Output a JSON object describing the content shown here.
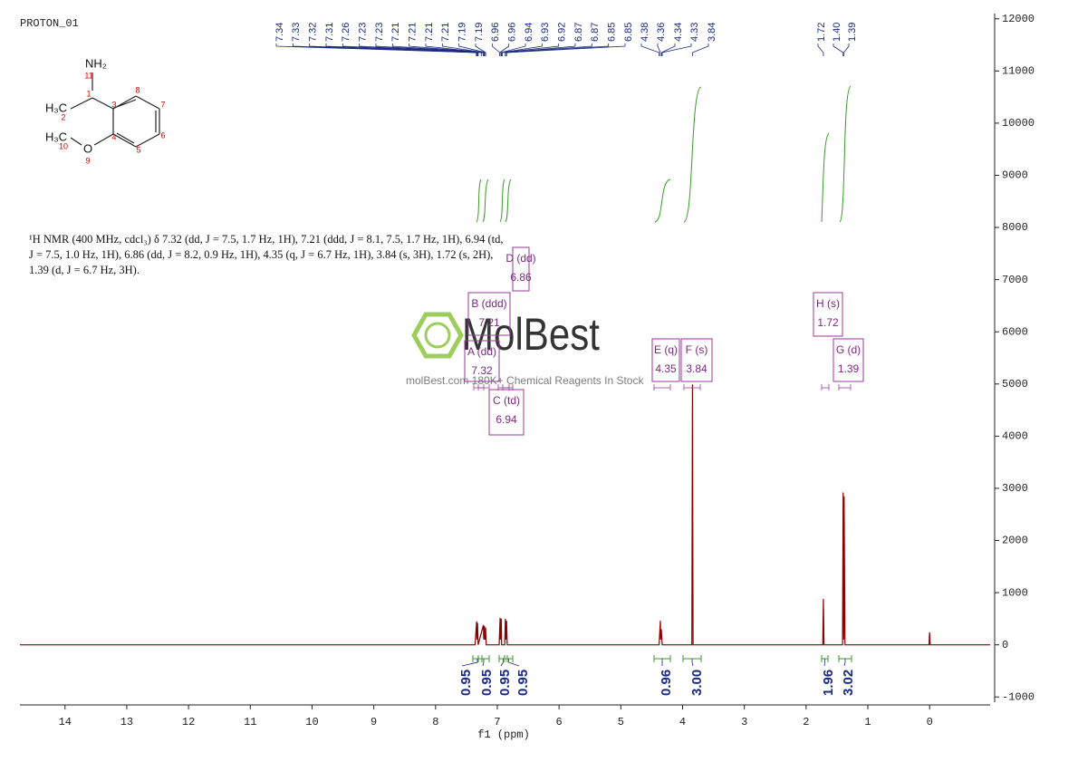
{
  "chart_data": {
    "type": "line",
    "title": "PROTON_01",
    "x_label": "f1 (ppm)",
    "color": "#8b0000",
    "xlim": [
      14.73,
      -0.98
    ],
    "xticks": [
      14,
      13,
      12,
      11,
      10,
      9,
      8,
      7,
      6,
      5,
      4,
      3,
      2,
      1,
      0
    ],
    "ylim": [
      -1100,
      12100
    ],
    "yticks": [
      -1000,
      0,
      1000,
      2000,
      3000,
      4000,
      5000,
      6000,
      7000,
      8000,
      9000,
      10000,
      11000,
      12000
    ],
    "x": [
      14.73,
      7.36,
      7.335,
      7.33,
      7.32,
      7.31,
      7.225,
      7.22,
      7.21,
      7.2,
      7.19,
      7.18,
      6.97,
      6.955,
      6.95,
      6.935,
      6.93,
      6.88,
      6.87,
      6.86,
      6.85,
      6.84,
      4.38,
      4.36,
      4.355,
      4.345,
      4.33,
      3.85,
      3.84,
      3.83,
      1.73,
      1.72,
      1.71,
      1.41,
      1.4,
      1.39,
      1.385,
      1.37,
      0.01,
      0,
      -0.01,
      -0.98
    ],
    "values": [
      0,
      0,
      450,
      100,
      420,
      0,
      380,
      100,
      360,
      100,
      330,
      0,
      0,
      520,
      100,
      500,
      0,
      0,
      500,
      100,
      460,
      0,
      0,
      460,
      100,
      300,
      0,
      0,
      4990,
      0,
      0,
      880,
      0,
      0,
      2920,
      100,
      2850,
      0,
      0,
      240,
      0,
      0
    ],
    "peak_labels": [
      "7.34",
      "7.33",
      "7.32",
      "7.31",
      "7.26",
      "7.23",
      "7.23",
      "7.21",
      "7.21",
      "7.21",
      "7.21",
      "7.19",
      "7.19",
      "6.96",
      "6.96",
      "6.94",
      "6.93",
      "6.92",
      "6.87",
      "6.87",
      "6.85",
      "6.85",
      "4.38",
      "4.36",
      "4.34",
      "4.33",
      "3.84",
      "1.72",
      "1.40",
      "1.39"
    ],
    "multiplets": [
      {
        "label": "A (dd)",
        "shift": "7.32"
      },
      {
        "label": "B (ddd)",
        "shift": "7.21"
      },
      {
        "label": "C (td)",
        "shift": "6.94"
      },
      {
        "label": "D (dd)",
        "shift": "6.86"
      },
      {
        "label": "E (q)",
        "shift": "4.35"
      },
      {
        "label": "F (s)",
        "shift": "3.84"
      },
      {
        "label": "G (d)",
        "shift": "1.39"
      },
      {
        "label": "H (s)",
        "shift": "1.72"
      }
    ],
    "integrals": [
      "0.95",
      "0.95",
      "0.95",
      "0.95",
      "0.96",
      "3.00",
      "1.96",
      "3.02"
    ],
    "description": [
      "¹H NMR (400 MHz, cdcl₃) δ 7.32 (dd, J = 7.5, 1.7 Hz, 1H), 7.21 (ddd, J = 8.1, 7.5, 1.7 Hz, 1H), 6.94 (td,",
      "J = 7.5, 1.0 Hz, 1H), 6.86 (dd, J = 8.2, 0.9 Hz, 1H), 4.35 (q, J = 6.7 Hz, 1H), 3.84 (s, 3H), 1.72 (s, 2H),",
      "1.39 (d, J = 6.7 Hz, 3H)."
    ],
    "watermark": {
      "brand": "MolBest",
      "tagline": "molBest.com 180K+ Chemical Reagents In Stock"
    }
  },
  "structure": {
    "atoms": [
      "NH₂",
      "H₃C",
      "H₃C",
      "O"
    ],
    "numbers": [
      "11",
      "1",
      "2",
      "3",
      "4",
      "5",
      "6",
      "7",
      "8",
      "9",
      "10"
    ]
  }
}
